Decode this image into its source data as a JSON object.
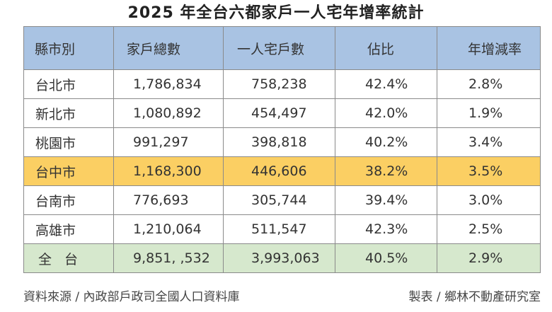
{
  "title": "2025 年全台六都家戶一人宅年增率統計",
  "table": {
    "headers": [
      "縣市別",
      "家戶總數",
      "一人宅戶數",
      "佔比",
      "年增減率"
    ],
    "rows": [
      {
        "city": "台北市",
        "households": "1,786,834",
        "single": "758,238",
        "share": "42.4%",
        "growth": "2.8%"
      },
      {
        "city": "新北市",
        "households": "1,080,892",
        "single": "454,497",
        "share": "42.0%",
        "growth": "1.9%"
      },
      {
        "city": "桃園市",
        "households": "991,297",
        "single": "398,818",
        "share": "40.2%",
        "growth": "3.4%"
      },
      {
        "city": "台中市",
        "households": "1,168,300",
        "single": "446,606",
        "share": "38.2%",
        "growth": "3.5%"
      },
      {
        "city": "台南市",
        "households": "776,693",
        "single": "305,744",
        "share": "39.4%",
        "growth": "3.0%"
      },
      {
        "city": "高雄市",
        "households": "1,210,064",
        "single": "511,547",
        "share": "42.3%",
        "growth": "2.5%"
      },
      {
        "city": "全台",
        "households": "9,851, ,532",
        "single": "3,993,063",
        "share": "40.5%",
        "growth": "2.9%"
      }
    ]
  },
  "colors": {
    "header_bg": "#a9c3e3",
    "highlight_bg": "#fbcf63",
    "total_bg": "#d6e8cd",
    "border": "#8a8a8a"
  },
  "footer": {
    "source": "資料來源 / 內政部戶政司全國人口資料庫",
    "maker": "製表 / 鄉林不動產研究室"
  }
}
